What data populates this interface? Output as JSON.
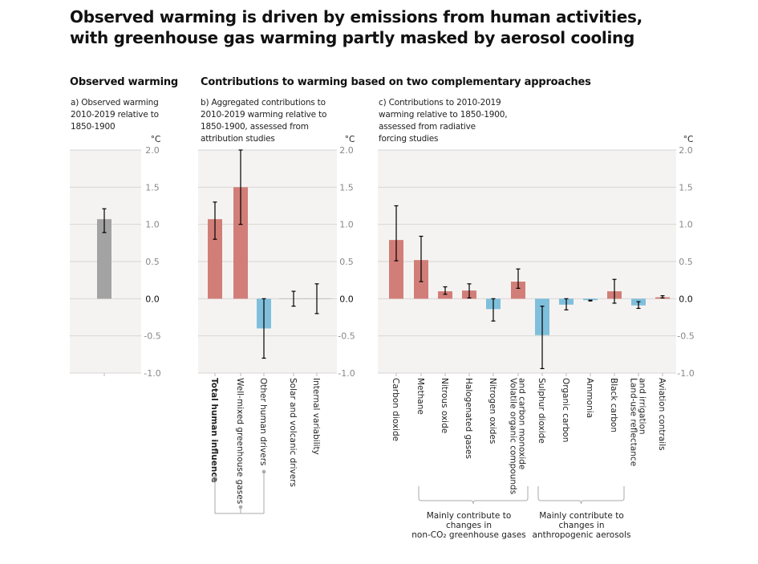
{
  "title": "Observed warming is driven by emissions from human activities, with greenhouse gas warming partly masked by aerosol cooling",
  "sections": {
    "observed": "Observed warming",
    "contributions": "Contributions to warming based on two complementary approaches"
  },
  "colors": {
    "warming": "#d27e78",
    "cooling": "#7fbfdc",
    "observed": "#a3a3a3",
    "panel_bg": "#f5f3f1",
    "grid": "#d8d6d4",
    "error": "#000000",
    "bracket": "#aaaaaa"
  },
  "chart_data": [
    {
      "type": "bar",
      "panel": "a",
      "title": "a) Observed warming 2010-2019 relative to 1850-1900",
      "title_lines": [
        "a) Observed warming",
        "2010-2019 relative to",
        "1850-1900"
      ],
      "ylabel": "°C",
      "ylim": [
        -1.0,
        2.0
      ],
      "yticks": [
        "2.0",
        "1.5",
        "1.0",
        "0.5",
        "0.0",
        "-0.5",
        "-1.0"
      ],
      "grid": true,
      "categories": [
        ""
      ],
      "values": [
        1.07
      ],
      "error_low": [
        0.89
      ],
      "error_high": [
        1.21
      ],
      "colors": [
        "observed"
      ]
    },
    {
      "type": "bar",
      "panel": "b",
      "title": "b) Aggregated contributions to 2010-2019 warming relative to 1850-1900, assessed from attribution studies",
      "title_lines": [
        "b) Aggregated contributions to",
        "2010-2019 warming relative to",
        "1850-1900, assessed from",
        "attribution studies"
      ],
      "ylabel": "°C",
      "ylim": [
        -1.0,
        2.0
      ],
      "yticks": [
        "2.0",
        "1.5",
        "1.0",
        "0.5",
        "0.0",
        "-0.5",
        "-1.0"
      ],
      "grid": true,
      "categories": [
        "Total human influence",
        "Well-mixed greenhouse gases",
        "Other human drivers",
        "Solar and volcanic drivers",
        "Internal variability"
      ],
      "bold_categories": [
        "Total human influence"
      ],
      "values": [
        1.07,
        1.5,
        -0.4,
        0.0,
        0.0
      ],
      "error_low": [
        0.8,
        1.0,
        -0.8,
        -0.1,
        -0.2
      ],
      "error_high": [
        1.3,
        2.0,
        0.0,
        0.1,
        0.2
      ],
      "colors": [
        "warming",
        "warming",
        "cooling",
        "none",
        "none"
      ],
      "annotation": "Total human influence = Well-mixed greenhouse gases + Other human drivers"
    },
    {
      "type": "bar",
      "panel": "c",
      "title": "c) Contributions to 2010-2019 warming relative to 1850-1900, assessed from radiative forcing studies",
      "title_lines": [
        "c) Contributions to 2010-2019",
        "warming relative to 1850-1900,",
        "assessed from radiative",
        "forcing studies"
      ],
      "ylabel": "°C",
      "ylim": [
        -1.0,
        2.0
      ],
      "yticks": [
        "2.0",
        "1.5",
        "1.0",
        "0.5",
        "0.0",
        "-0.5",
        "-1.0"
      ],
      "grid": true,
      "categories": [
        [
          "Carbon dioxide"
        ],
        [
          "Methane"
        ],
        [
          "Nitrous oxide"
        ],
        [
          "Halogenated gases"
        ],
        [
          "Nitrogen oxides"
        ],
        [
          "Volatile organic compounds",
          "and carbon monoxide"
        ],
        [
          "Sulphur dioxide"
        ],
        [
          "Organic carbon"
        ],
        [
          "Ammonia"
        ],
        [
          "Black carbon"
        ],
        [
          "Land-use reflectance",
          "and irrigation"
        ],
        [
          "Aviation contrails"
        ]
      ],
      "values": [
        0.79,
        0.52,
        0.1,
        0.11,
        -0.14,
        0.23,
        -0.49,
        -0.08,
        -0.02,
        0.1,
        -0.09,
        0.02
      ],
      "error_low": [
        0.51,
        0.23,
        0.06,
        0.01,
        -0.3,
        0.14,
        -0.94,
        -0.15,
        -0.03,
        -0.06,
        -0.13,
        0.01
      ],
      "error_high": [
        1.25,
        0.84,
        0.16,
        0.2,
        0.0,
        0.4,
        -0.1,
        0.0,
        -0.02,
        0.26,
        -0.04,
        0.04
      ],
      "colors": [
        "warming",
        "warming",
        "warming",
        "warming",
        "cooling",
        "warming",
        "cooling",
        "cooling",
        "cooling",
        "warming",
        "cooling",
        "warming"
      ],
      "groups": [
        {
          "label_lines": [
            "Mainly contribute to",
            "changes in",
            "non-CO₂ greenhouse gases"
          ],
          "from": 1,
          "to": 5
        },
        {
          "label_lines": [
            "Mainly contribute to",
            "changes in",
            "anthropogenic aerosols"
          ],
          "from": 6,
          "to": 9
        }
      ]
    }
  ]
}
